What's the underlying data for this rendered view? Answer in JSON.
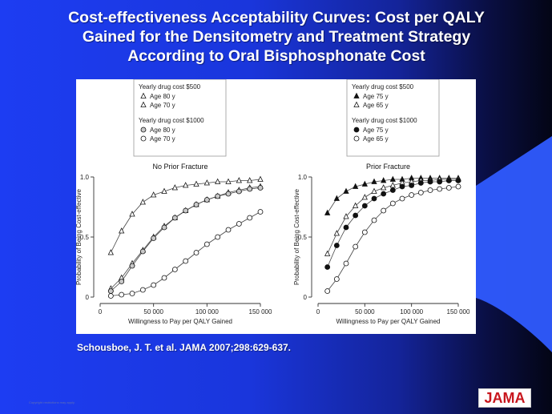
{
  "slide": {
    "title_lines": [
      "Cost-effectiveness Acceptability Curves: Cost per QALY",
      "Gained for the Densitometry and Treatment Strategy",
      "According to Oral Bisphosphonate Cost"
    ],
    "citation": "Schousboe, J. T. et al. JAMA 2007;298:629-637.",
    "copyright": "Copyright restrictions may apply.",
    "logo": "JAMA",
    "colors": {
      "background": "#1d3df2",
      "accent": "#2f5bff",
      "logo_red": "#c8161d"
    }
  },
  "chart_data": [
    {
      "type": "line",
      "title": "No Prior Fracture",
      "xlabel": "Willingness to Pay per QALY Gained",
      "ylabel": "Probability of Being Cost-effective",
      "xlim": [
        0,
        150000
      ],
      "ylim": [
        0,
        1.0
      ],
      "xticks": [
        0,
        50000,
        100000,
        150000
      ],
      "xtick_labels": [
        "0",
        "50 000",
        "100 000",
        "150 000"
      ],
      "yticks": [
        0,
        0.5,
        1.0
      ],
      "ytick_labels": [
        "0",
        "0.5",
        "1.0"
      ],
      "legend": {
        "groups": [
          {
            "heading": "Yearly drug cost $500",
            "entries": [
              "Age 80 y",
              "Age 70 y"
            ]
          },
          {
            "heading": "Yearly drug cost $1000",
            "entries": [
              "Age 80 y",
              "Age 70 y"
            ]
          }
        ],
        "placement": "top"
      },
      "series": [
        {
          "name": "Age 80 y",
          "group": "Yearly drug cost $500",
          "marker": "triangle-open",
          "x": [
            10000,
            20000,
            30000,
            40000,
            50000,
            60000,
            70000,
            80000,
            90000,
            100000,
            110000,
            120000,
            130000,
            140000,
            150000
          ],
          "y": [
            0.37,
            0.55,
            0.69,
            0.79,
            0.85,
            0.88,
            0.91,
            0.93,
            0.94,
            0.95,
            0.96,
            0.96,
            0.97,
            0.97,
            0.98
          ]
        },
        {
          "name": "Age 70 y",
          "group": "Yearly drug cost $500",
          "marker": "triangle-open",
          "x": [
            10000,
            20000,
            30000,
            40000,
            50000,
            60000,
            70000,
            80000,
            90000,
            100000,
            110000,
            120000,
            130000,
            140000,
            150000
          ],
          "y": [
            0.07,
            0.16,
            0.28,
            0.39,
            0.5,
            0.59,
            0.66,
            0.72,
            0.77,
            0.81,
            0.84,
            0.87,
            0.89,
            0.91,
            0.92
          ]
        },
        {
          "name": "Age 80 y",
          "group": "Yearly drug cost $1000",
          "marker": "circle-gray",
          "x": [
            10000,
            20000,
            30000,
            40000,
            50000,
            60000,
            70000,
            80000,
            90000,
            100000,
            110000,
            120000,
            130000,
            140000,
            150000
          ],
          "y": [
            0.05,
            0.13,
            0.26,
            0.38,
            0.49,
            0.58,
            0.66,
            0.72,
            0.77,
            0.81,
            0.84,
            0.86,
            0.88,
            0.9,
            0.91
          ]
        },
        {
          "name": "Age 70 y",
          "group": "Yearly drug cost $1000",
          "marker": "circle-open",
          "x": [
            10000,
            20000,
            30000,
            40000,
            50000,
            60000,
            70000,
            80000,
            90000,
            100000,
            110000,
            120000,
            130000,
            140000,
            150000
          ],
          "y": [
            0.01,
            0.02,
            0.03,
            0.06,
            0.1,
            0.16,
            0.23,
            0.3,
            0.37,
            0.44,
            0.5,
            0.56,
            0.61,
            0.66,
            0.71
          ]
        }
      ]
    },
    {
      "type": "line",
      "title": "Prior Fracture",
      "xlabel": "Willingness to Pay per QALY Gained",
      "ylabel": "Probability of Being Cost-effective",
      "xlim": [
        0,
        150000
      ],
      "ylim": [
        0,
        1.0
      ],
      "xticks": [
        0,
        50000,
        100000,
        150000
      ],
      "xtick_labels": [
        "0",
        "50 000",
        "100 000",
        "150 000"
      ],
      "yticks": [
        0,
        0.5,
        1.0
      ],
      "ytick_labels": [
        "0",
        "0.5",
        "1.0"
      ],
      "legend": {
        "groups": [
          {
            "heading": "Yearly drug cost $500",
            "entries": [
              "Age 75 y",
              "Age 65 y"
            ]
          },
          {
            "heading": "Yearly drug cost $1000",
            "entries": [
              "Age 75 y",
              "Age 65 y"
            ]
          }
        ],
        "placement": "top"
      },
      "series": [
        {
          "name": "Age 75 y",
          "group": "Yearly drug cost $500",
          "marker": "triangle-filled",
          "x": [
            10000,
            20000,
            30000,
            40000,
            50000,
            60000,
            70000,
            80000,
            90000,
            100000,
            110000,
            120000,
            130000,
            140000,
            150000
          ],
          "y": [
            0.7,
            0.82,
            0.88,
            0.92,
            0.94,
            0.96,
            0.97,
            0.98,
            0.98,
            0.99,
            0.99,
            0.99,
            0.99,
            0.99,
            0.99
          ]
        },
        {
          "name": "Age 65 y",
          "group": "Yearly drug cost $500",
          "marker": "triangle-open",
          "x": [
            10000,
            20000,
            30000,
            40000,
            50000,
            60000,
            70000,
            80000,
            90000,
            100000,
            110000,
            120000,
            130000,
            140000,
            150000
          ],
          "y": [
            0.36,
            0.53,
            0.67,
            0.76,
            0.83,
            0.88,
            0.91,
            0.93,
            0.95,
            0.96,
            0.97,
            0.97,
            0.98,
            0.98,
            0.98
          ]
        },
        {
          "name": "Age 75 y",
          "group": "Yearly drug cost $1000",
          "marker": "circle-filled",
          "x": [
            10000,
            20000,
            30000,
            40000,
            50000,
            60000,
            70000,
            80000,
            90000,
            100000,
            110000,
            120000,
            130000,
            140000,
            150000
          ],
          "y": [
            0.25,
            0.43,
            0.58,
            0.68,
            0.76,
            0.82,
            0.86,
            0.89,
            0.92,
            0.93,
            0.95,
            0.96,
            0.96,
            0.97,
            0.97
          ]
        },
        {
          "name": "Age 65 y",
          "group": "Yearly drug cost $1000",
          "marker": "circle-open",
          "x": [
            10000,
            20000,
            30000,
            40000,
            50000,
            60000,
            70000,
            80000,
            90000,
            100000,
            110000,
            120000,
            130000,
            140000,
            150000
          ],
          "y": [
            0.05,
            0.15,
            0.28,
            0.42,
            0.54,
            0.64,
            0.72,
            0.78,
            0.82,
            0.85,
            0.87,
            0.89,
            0.9,
            0.91,
            0.92
          ]
        }
      ]
    }
  ]
}
